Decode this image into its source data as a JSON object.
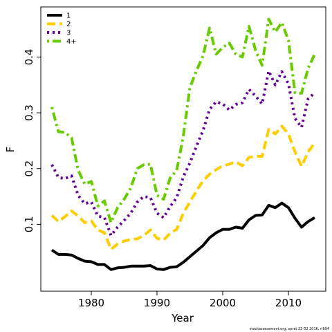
{
  "chart_data": {
    "type": "line",
    "xlabel": "Year",
    "ylabel": "F",
    "xlim": [
      1974,
      2014
    ],
    "ylim": [
      0.0,
      0.47
    ],
    "x_ticks": [
      1980,
      1990,
      2000,
      2010
    ],
    "y_ticks": [
      0.1,
      0.2,
      0.3,
      0.4
    ],
    "grid": false,
    "legend_position": "top-left",
    "x": [
      1974,
      1975,
      1976,
      1977,
      1978,
      1979,
      1980,
      1981,
      1982,
      1983,
      1984,
      1985,
      1986,
      1987,
      1988,
      1989,
      1990,
      1991,
      1992,
      1993,
      1994,
      1995,
      1996,
      1997,
      1998,
      1999,
      2000,
      2001,
      2002,
      2003,
      2004,
      2005,
      2006,
      2007,
      2008,
      2009,
      2010,
      2011,
      2012,
      2013,
      2014
    ],
    "series": [
      {
        "name": "1",
        "color": "#000000",
        "dash": "solid",
        "values": [
          0.054,
          0.046,
          0.046,
          0.045,
          0.039,
          0.034,
          0.033,
          0.028,
          0.028,
          0.019,
          0.022,
          0.023,
          0.025,
          0.025,
          0.025,
          0.026,
          0.02,
          0.019,
          0.023,
          0.024,
          0.032,
          0.042,
          0.052,
          0.062,
          0.076,
          0.085,
          0.091,
          0.091,
          0.095,
          0.093,
          0.108,
          0.116,
          0.117,
          0.134,
          0.13,
          0.138,
          0.13,
          0.111,
          0.095,
          0.105,
          0.112
        ]
      },
      {
        "name": "2",
        "color": "#ffcc00",
        "dash": "dashed",
        "values": [
          0.116,
          0.105,
          0.114,
          0.124,
          0.115,
          0.103,
          0.106,
          0.09,
          0.085,
          0.055,
          0.065,
          0.07,
          0.073,
          0.074,
          0.08,
          0.09,
          0.075,
          0.072,
          0.084,
          0.091,
          0.12,
          0.14,
          0.16,
          0.178,
          0.19,
          0.198,
          0.205,
          0.208,
          0.212,
          0.205,
          0.22,
          0.222,
          0.222,
          0.27,
          0.262,
          0.276,
          0.262,
          0.23,
          0.204,
          0.23,
          0.246
        ]
      },
      {
        "name": "3",
        "color": "#660099",
        "dash": "dotted",
        "values": [
          0.207,
          0.184,
          0.182,
          0.187,
          0.152,
          0.137,
          0.14,
          0.115,
          0.112,
          0.08,
          0.095,
          0.107,
          0.12,
          0.14,
          0.15,
          0.148,
          0.12,
          0.112,
          0.132,
          0.148,
          0.185,
          0.21,
          0.24,
          0.268,
          0.306,
          0.32,
          0.316,
          0.305,
          0.315,
          0.318,
          0.342,
          0.33,
          0.316,
          0.375,
          0.35,
          0.374,
          0.352,
          0.29,
          0.274,
          0.325,
          0.336
        ]
      },
      {
        "name": "4+",
        "color": "#66cc00",
        "dash": "dotdash",
        "values": [
          0.31,
          0.266,
          0.265,
          0.255,
          0.197,
          0.172,
          0.177,
          0.133,
          0.142,
          0.103,
          0.13,
          0.145,
          0.165,
          0.2,
          0.207,
          0.208,
          0.152,
          0.145,
          0.183,
          0.197,
          0.258,
          0.345,
          0.375,
          0.402,
          0.452,
          0.405,
          0.417,
          0.425,
          0.405,
          0.4,
          0.455,
          0.412,
          0.385,
          0.468,
          0.445,
          0.462,
          0.43,
          0.336,
          0.335,
          0.38,
          0.405
        ]
      }
    ],
    "annotation": "stockassessment.org, sprat  22-32  2016, rl694"
  }
}
